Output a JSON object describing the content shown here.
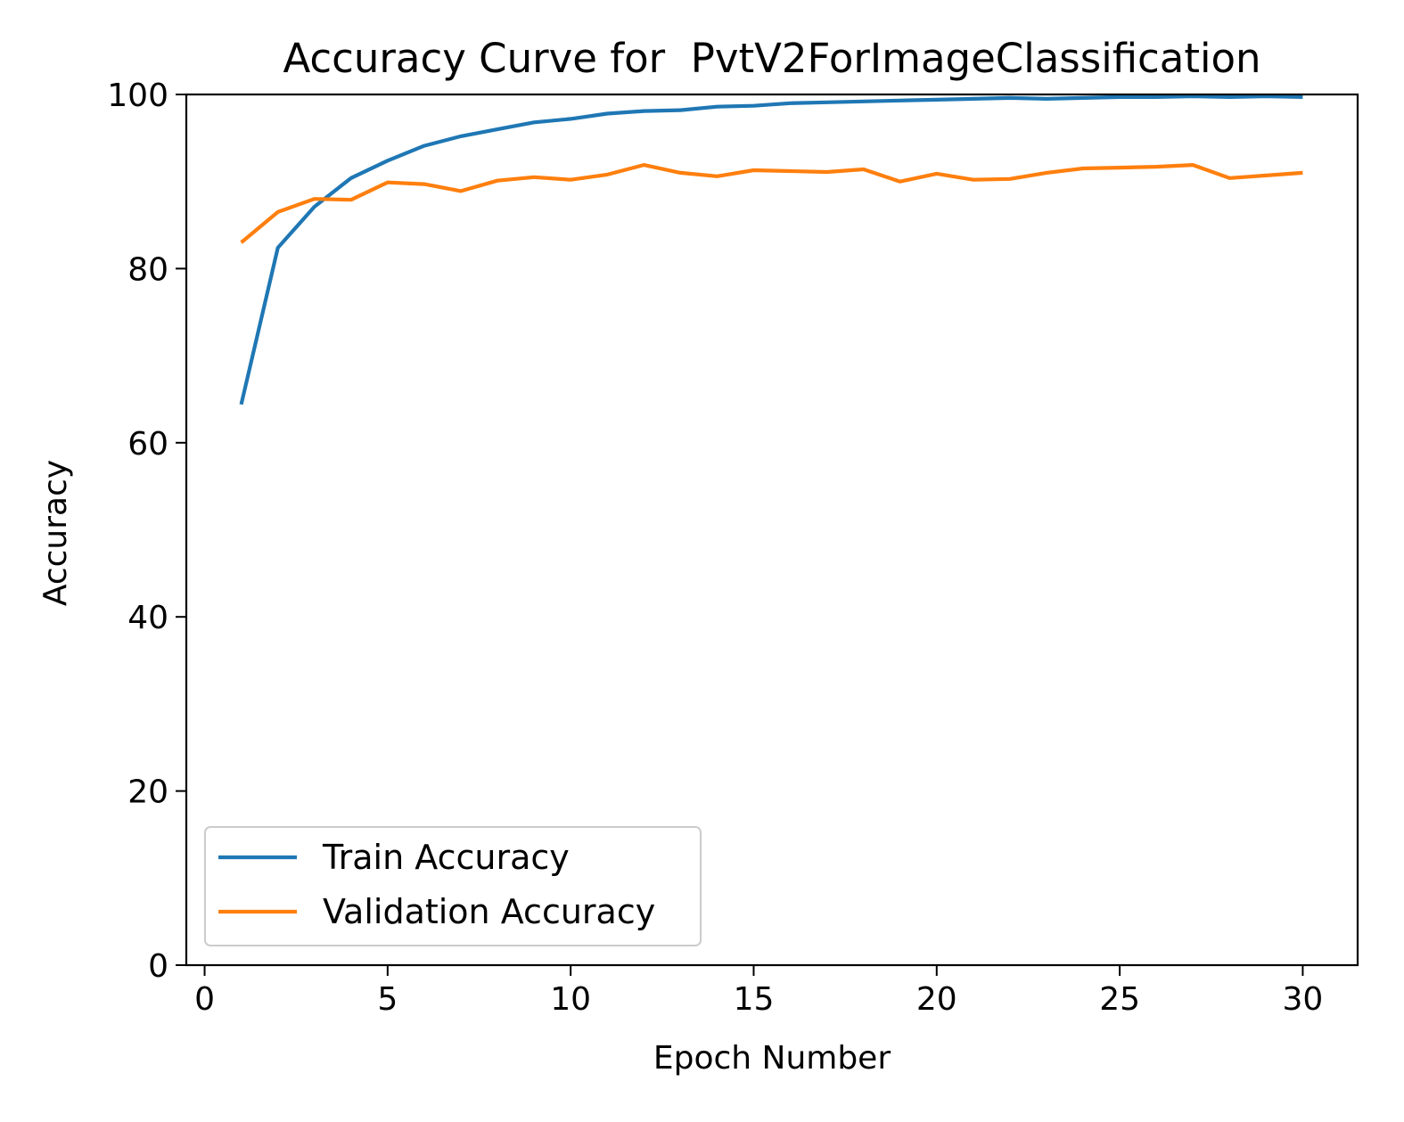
{
  "chart_data": {
    "type": "line",
    "title": "Accuracy Curve for  PvtV2ForImageClassification",
    "xlabel": "Epoch Number",
    "ylabel": "Accuracy",
    "xlim": [
      -0.5,
      31.5
    ],
    "ylim": [
      0,
      100
    ],
    "xticks": [
      0,
      5,
      10,
      15,
      20,
      25,
      30
    ],
    "yticks": [
      0,
      20,
      40,
      60,
      80,
      100
    ],
    "grid": false,
    "legend_position": "lower-left",
    "x": [
      1,
      2,
      3,
      4,
      5,
      6,
      7,
      8,
      9,
      10,
      11,
      12,
      13,
      14,
      15,
      16,
      17,
      18,
      19,
      20,
      21,
      22,
      23,
      24,
      25,
      26,
      27,
      28,
      29,
      30
    ],
    "series": [
      {
        "name": "Train Accuracy",
        "color": "#1f77b4",
        "values": [
          64.4,
          82.4,
          87.1,
          90.4,
          92.4,
          94.1,
          95.2,
          96.0,
          96.8,
          97.2,
          97.8,
          98.1,
          98.2,
          98.6,
          98.7,
          99.0,
          99.1,
          99.2,
          99.3,
          99.4,
          99.5,
          99.6,
          99.5,
          99.6,
          99.7,
          99.7,
          99.8,
          99.7,
          99.8,
          99.7
        ]
      },
      {
        "name": "Validation Accuracy",
        "color": "#ff7f0e",
        "values": [
          83.0,
          86.5,
          88.0,
          87.9,
          89.9,
          89.7,
          88.9,
          90.1,
          90.5,
          90.2,
          90.8,
          91.9,
          91.0,
          90.6,
          91.3,
          91.2,
          91.1,
          91.4,
          90.0,
          90.9,
          90.2,
          90.3,
          91.0,
          91.5,
          91.6,
          91.7,
          91.9,
          90.4,
          90.7,
          91.0
        ]
      }
    ]
  }
}
